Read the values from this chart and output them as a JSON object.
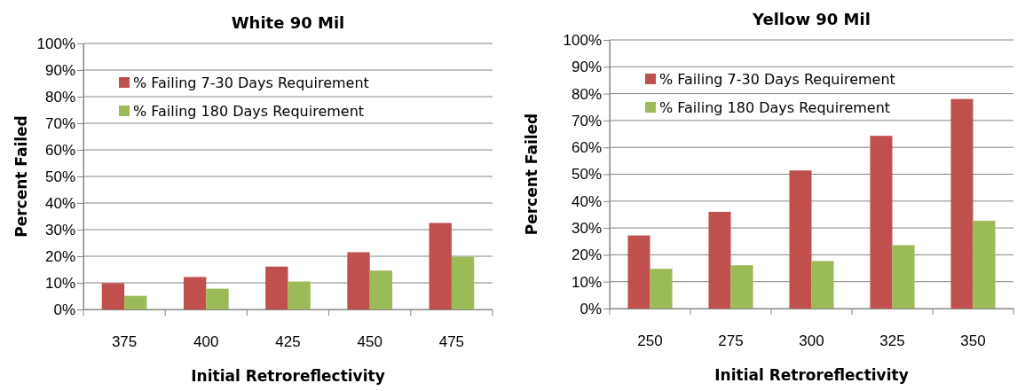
{
  "chart_data": [
    {
      "type": "bar",
      "title": "White 90 Mil",
      "xlabel": "Initial Retroreflectivity",
      "ylabel": "Percent Failed",
      "categories": [
        "375",
        "400",
        "425",
        "450",
        "475"
      ],
      "series": [
        {
          "name": "% Failing 7-30 Days Requirement",
          "color": "#c0504d",
          "values": [
            9.9,
            12.2,
            16.1,
            21.5,
            32.5
          ]
        },
        {
          "name": "% Failing 180 Days Requirement",
          "color": "#9bbb59",
          "values": [
            5.1,
            7.8,
            10.5,
            14.6,
            19.8
          ]
        }
      ],
      "ylim": [
        0,
        100
      ],
      "yticks": [
        {
          "value": 0,
          "label": "0%"
        },
        {
          "value": 10,
          "label": "10%"
        },
        {
          "value": 20,
          "label": "20%"
        },
        {
          "value": 30,
          "label": "30%"
        },
        {
          "value": 40,
          "label": "40%"
        },
        {
          "value": 50,
          "label": "50%"
        },
        {
          "value": 60,
          "label": "60%"
        },
        {
          "value": 70,
          "label": "70%"
        },
        {
          "value": 80,
          "label": "80%"
        },
        {
          "value": 90,
          "label": "90%"
        },
        {
          "value": 100,
          "label": "100%"
        }
      ],
      "grid": "y",
      "legend": "top left"
    },
    {
      "type": "bar",
      "title": "Yellow 90 Mil",
      "xlabel": "Initial Retroreflectivity",
      "ylabel": "Percent Failed",
      "categories": [
        "250",
        "275",
        "300",
        "325",
        "350"
      ],
      "series": [
        {
          "name": "% Failing 7-30 Days Requirement",
          "color": "#c0504d",
          "values": [
            27.2,
            36,
            51.4,
            64.3,
            78
          ]
        },
        {
          "name": "% Failing 180 Days Requirement",
          "color": "#9bbb59",
          "values": [
            14.8,
            16.1,
            17.7,
            23.6,
            32.7
          ]
        }
      ],
      "ylim": [
        0,
        100
      ],
      "yticks": [
        {
          "value": 0,
          "label": "0%"
        },
        {
          "value": 10,
          "label": "10%"
        },
        {
          "value": 20,
          "label": "20%"
        },
        {
          "value": 30,
          "label": "30%"
        },
        {
          "value": 40,
          "label": "40%"
        },
        {
          "value": 50,
          "label": "50%"
        },
        {
          "value": 60,
          "label": "60%"
        },
        {
          "value": 70,
          "label": "70%"
        },
        {
          "value": 80,
          "label": "80%"
        },
        {
          "value": 90,
          "label": "90%"
        },
        {
          "value": 100,
          "label": "100%"
        }
      ],
      "grid": "y",
      "legend": "top left"
    }
  ]
}
